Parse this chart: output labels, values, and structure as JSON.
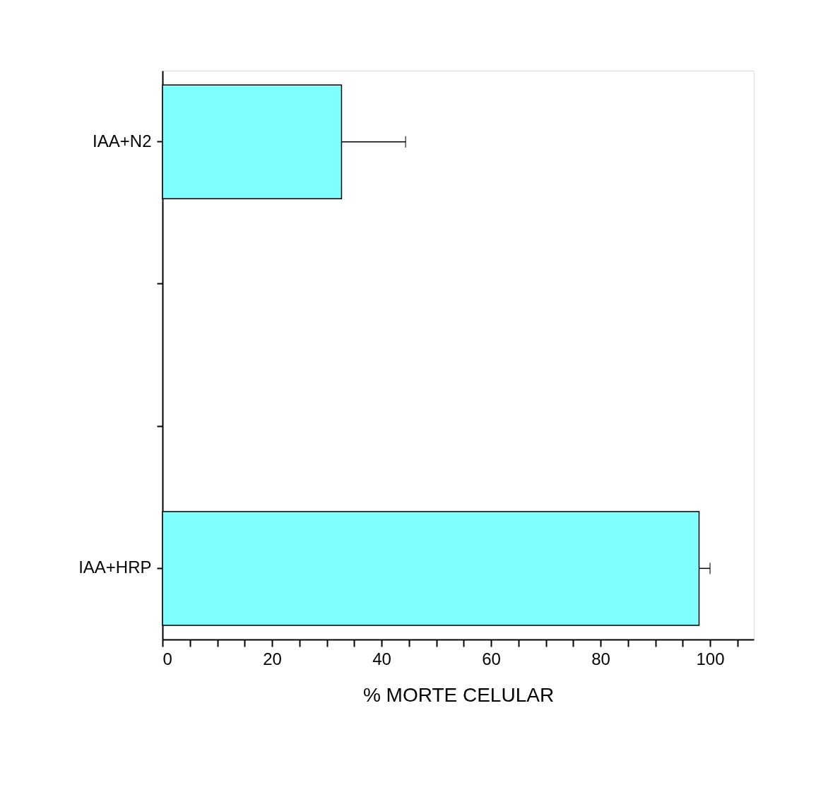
{
  "chart_data": {
    "type": "bar",
    "orientation": "horizontal",
    "xlabel": "% MORTE CELULAR",
    "categories": [
      "IAA+N2",
      null,
      null,
      "IAA+HRP"
    ],
    "values": [
      32.7,
      null,
      null,
      98
    ],
    "errors": [
      [
        32.7,
        44.4
      ],
      null,
      null,
      [
        98,
        100
      ]
    ],
    "color": "#80ffff",
    "xlim": [
      0,
      108
    ],
    "xticks": [
      0,
      {
        "value": 5,
        "label": null
      },
      {
        "value": 10,
        "label": null
      },
      {
        "value": 15,
        "label": null
      },
      20,
      {
        "value": 25,
        "label": null
      },
      {
        "value": 30,
        "label": null
      },
      {
        "value": 35,
        "label": null
      },
      40,
      {
        "value": 45,
        "label": null
      },
      {
        "value": 50,
        "label": null
      },
      {
        "value": 55,
        "label": null
      },
      60,
      {
        "value": 65,
        "label": null
      },
      {
        "value": 70,
        "label": null
      },
      {
        "value": 75,
        "label": null
      },
      80,
      {
        "value": 85,
        "label": null
      },
      {
        "value": 90,
        "label": null
      },
      {
        "value": 95,
        "label": null
      },
      100,
      {
        "value": 105,
        "label": null
      }
    ],
    "grid": false
  }
}
